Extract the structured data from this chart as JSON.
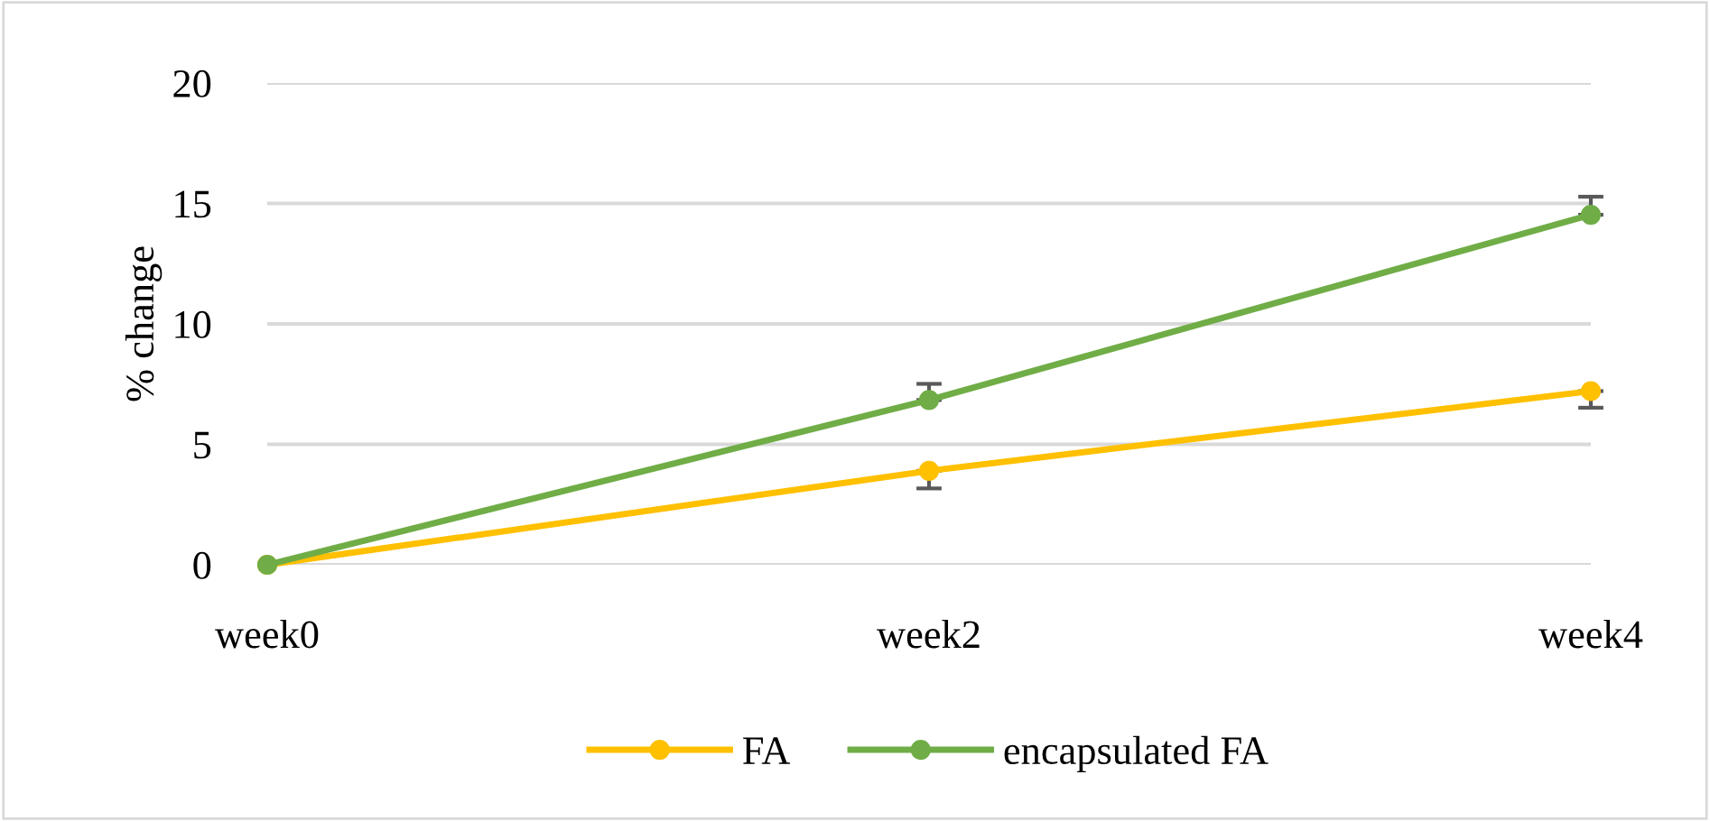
{
  "chart_data": {
    "type": "line",
    "ylabel": "% change",
    "categories": [
      "week0",
      "week2",
      "week4"
    ],
    "series": [
      {
        "name": "FA",
        "color": "#ffc000",
        "values": [
          0,
          3.9,
          7.21
        ],
        "errors": [
          null,
          [
            3.17,
            3.9
          ],
          [
            6.52,
            7.21
          ]
        ]
      },
      {
        "name": "encapsulated FA",
        "color": "#70ad47",
        "values": [
          0,
          6.84,
          14.53
        ],
        "errors": [
          null,
          [
            6.84,
            7.51
          ],
          [
            14.53,
            15.28
          ]
        ]
      }
    ],
    "ylim": [
      0,
      20
    ],
    "yticks": [
      0,
      5,
      10,
      15,
      20
    ],
    "grid": "y",
    "legend": "bottom",
    "marker": "circle",
    "line_style": "solid"
  }
}
